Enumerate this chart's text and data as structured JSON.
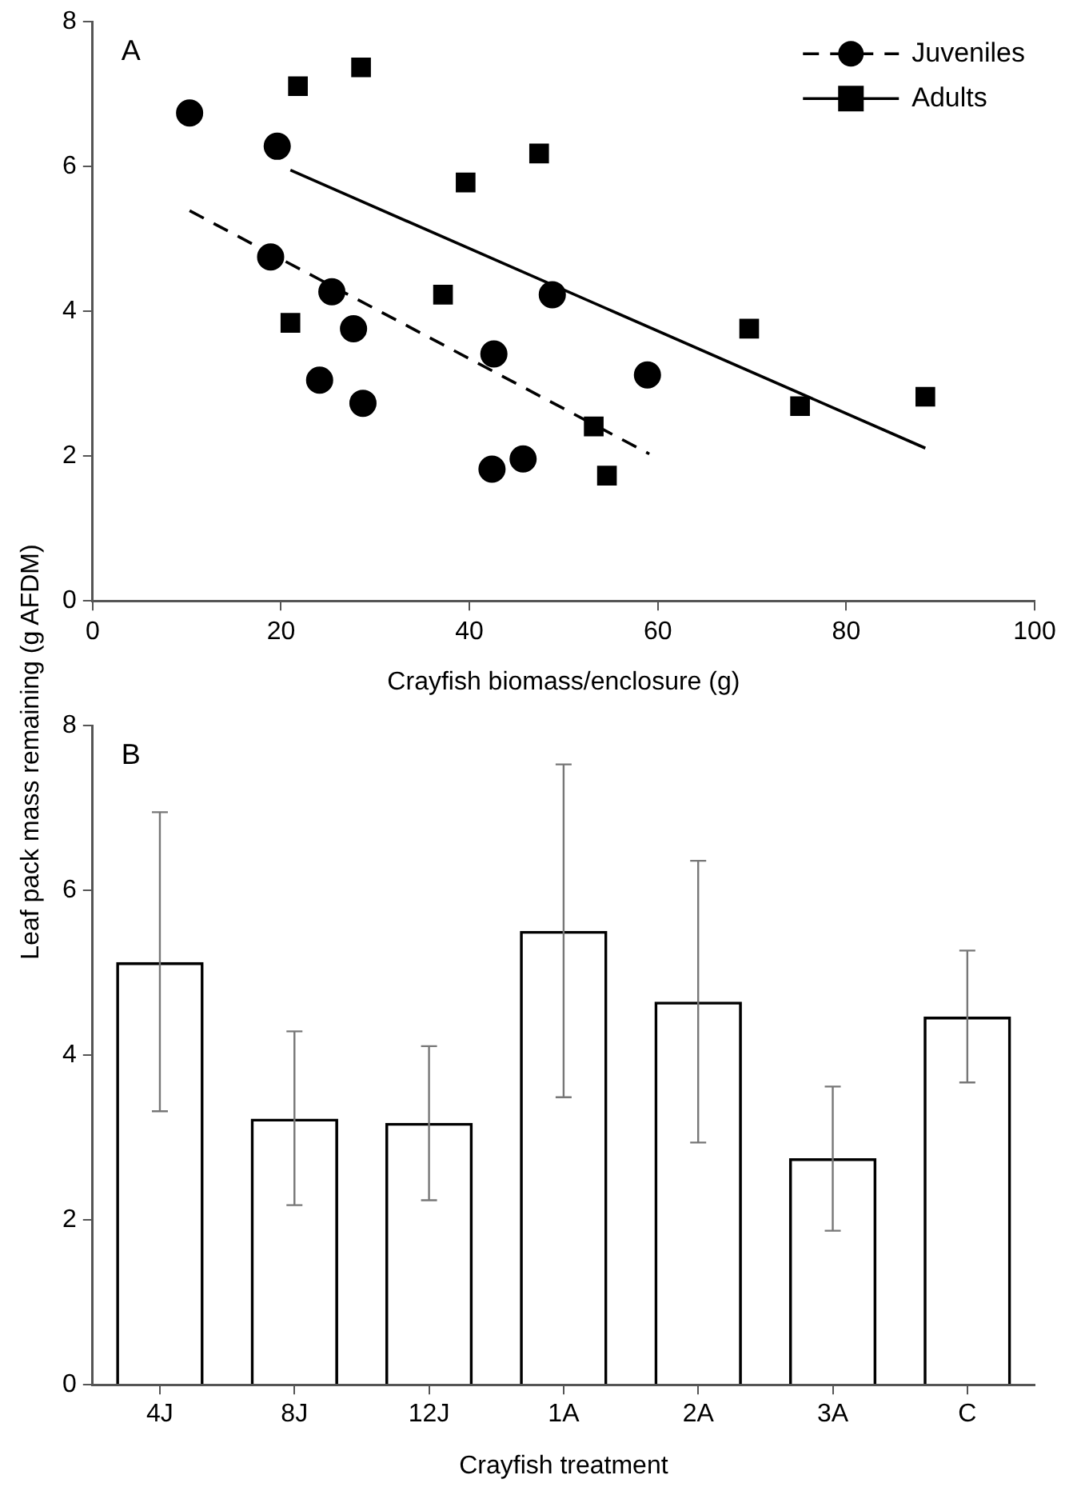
{
  "chart_data": [
    {
      "type": "scatter",
      "xlabel": "Crayfish biomass/enclosure (g)",
      "ylabel": "Leaf pack mass remaining (g AFDM)",
      "annotations": [
        "A"
      ],
      "xlim": [
        0,
        100
      ],
      "xticks": [
        0,
        20,
        40,
        60,
        80,
        100
      ],
      "ylim": [
        0,
        8
      ],
      "yticks": [
        0,
        2,
        4,
        6,
        8
      ],
      "legend": "top right",
      "grid": false,
      "series": [
        {
          "name": "Juveniles",
          "type": "scatter",
          "marker": "circle",
          "color": "#000000",
          "x": [
            10.3,
            19.6,
            18.9,
            25.4,
            27.7,
            24.1,
            28.7,
            42.6,
            48.8,
            42.4,
            45.7,
            58.9
          ],
          "values": [
            6.74,
            6.28,
            4.75,
            4.27,
            3.76,
            3.05,
            2.73,
            3.41,
            4.23,
            1.82,
            1.96,
            3.12
          ]
        },
        {
          "type": "line",
          "line_style": "dashed",
          "marker": "none",
          "color": "#000000",
          "x": [
            10.3,
            59.1
          ],
          "values": [
            5.39,
            2.03
          ]
        },
        {
          "name": "Adults",
          "type": "scatter",
          "marker": "square",
          "color": "#000000",
          "x": [
            21.8,
            28.5,
            21.0,
            39.6,
            47.4,
            37.2,
            53.2,
            54.6,
            69.7,
            75.1,
            88.4
          ],
          "values": [
            7.11,
            7.37,
            3.84,
            5.78,
            6.18,
            4.23,
            2.41,
            1.73,
            3.76,
            2.69,
            2.82
          ]
        },
        {
          "type": "line",
          "line_style": "solid",
          "marker": "none",
          "color": "#000000",
          "x": [
            21.0,
            88.4
          ],
          "values": [
            5.95,
            2.11
          ]
        }
      ]
    },
    {
      "type": "bar",
      "xlabel": "Crayfish treatment",
      "annotations": [
        "B"
      ],
      "categories": [
        "4J",
        "8J",
        "12J",
        "1A",
        "2A",
        "3A",
        "C"
      ],
      "ylim": [
        0,
        8
      ],
      "yticks": [
        0,
        2,
        4,
        6,
        8
      ],
      "grid": false,
      "color": "#000000",
      "values": [
        5.13,
        3.23,
        3.18,
        5.51,
        4.65,
        2.75,
        4.47
      ],
      "errors": [
        [
          3.32,
          6.95
        ],
        [
          2.18,
          4.29
        ],
        [
          2.24,
          4.11
        ],
        [
          3.49,
          7.53
        ],
        [
          2.94,
          6.36
        ],
        [
          1.87,
          3.62
        ],
        [
          3.67,
          5.27
        ]
      ]
    }
  ]
}
